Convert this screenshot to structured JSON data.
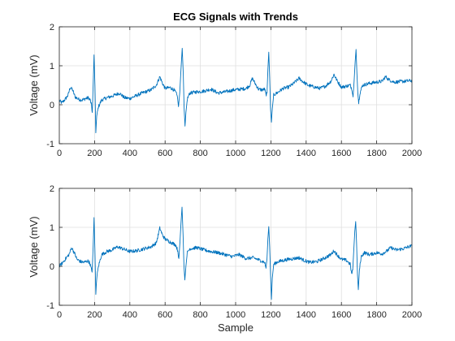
{
  "figure": {
    "title": "ECG Signals with Trends"
  },
  "colors": {
    "line": "#0072BD",
    "grid": "#DFDFDF",
    "axis": "#262626",
    "background": "#FFFFFF"
  },
  "chart_data": [
    {
      "type": "line",
      "title": "ECG Signals with Trends",
      "xlabel": "",
      "ylabel": "Voltage (mV)",
      "xlim": [
        0,
        2000
      ],
      "ylim": [
        -1,
        2
      ],
      "xticks": [
        0,
        200,
        400,
        600,
        800,
        1000,
        1200,
        1400,
        1600,
        1800,
        2000
      ],
      "yticks": [
        -1,
        0,
        1,
        2
      ],
      "grid": true,
      "series": [
        {
          "points": [
            [
              0,
              0.1
            ],
            [
              15,
              0.05
            ],
            [
              35,
              0.15
            ],
            [
              50,
              0.25
            ],
            [
              62,
              0.45
            ],
            [
              75,
              0.38
            ],
            [
              90,
              0.2
            ],
            [
              110,
              0.14
            ],
            [
              130,
              0.12
            ],
            [
              150,
              0.16
            ],
            [
              165,
              0.18
            ],
            [
              175,
              0.12
            ],
            [
              182,
              0.0
            ],
            [
              187,
              -0.2
            ],
            [
              192,
              0.5
            ],
            [
              197,
              1.28
            ],
            [
              202,
              0.5
            ],
            [
              207,
              -0.72
            ],
            [
              212,
              -0.3
            ],
            [
              222,
              -0.05
            ],
            [
              240,
              0.12
            ],
            [
              270,
              0.18
            ],
            [
              300,
              0.22
            ],
            [
              340,
              0.3
            ],
            [
              370,
              0.18
            ],
            [
              400,
              0.16
            ],
            [
              430,
              0.22
            ],
            [
              470,
              0.3
            ],
            [
              520,
              0.38
            ],
            [
              550,
              0.5
            ],
            [
              570,
              0.72
            ],
            [
              585,
              0.55
            ],
            [
              600,
              0.42
            ],
            [
              630,
              0.44
            ],
            [
              650,
              0.38
            ],
            [
              662,
              0.3
            ],
            [
              670,
              0.2
            ],
            [
              676,
              -0.05
            ],
            [
              683,
              0.3
            ],
            [
              690,
              0.9
            ],
            [
              697,
              1.45
            ],
            [
              703,
              0.8
            ],
            [
              708,
              -0.1
            ],
            [
              713,
              -0.55
            ],
            [
              718,
              -0.2
            ],
            [
              726,
              0.15
            ],
            [
              740,
              0.3
            ],
            [
              780,
              0.33
            ],
            [
              820,
              0.35
            ],
            [
              860,
              0.4
            ],
            [
              900,
              0.3
            ],
            [
              940,
              0.33
            ],
            [
              990,
              0.38
            ],
            [
              1030,
              0.4
            ],
            [
              1060,
              0.42
            ],
            [
              1080,
              0.5
            ],
            [
              1095,
              0.68
            ],
            [
              1110,
              0.55
            ],
            [
              1130,
              0.4
            ],
            [
              1150,
              0.38
            ],
            [
              1165,
              0.4
            ],
            [
              1172,
              0.25
            ],
            [
              1178,
              0.3
            ],
            [
              1183,
              0.9
            ],
            [
              1188,
              1.35
            ],
            [
              1193,
              0.7
            ],
            [
              1198,
              -0.1
            ],
            [
              1203,
              -0.45
            ],
            [
              1208,
              -0.1
            ],
            [
              1216,
              0.25
            ],
            [
              1240,
              0.32
            ],
            [
              1270,
              0.42
            ],
            [
              1300,
              0.45
            ],
            [
              1330,
              0.55
            ],
            [
              1360,
              0.68
            ],
            [
              1380,
              0.6
            ],
            [
              1410,
              0.5
            ],
            [
              1450,
              0.45
            ],
            [
              1480,
              0.42
            ],
            [
              1510,
              0.48
            ],
            [
              1540,
              0.6
            ],
            [
              1558,
              0.78
            ],
            [
              1575,
              0.62
            ],
            [
              1600,
              0.45
            ],
            [
              1630,
              0.48
            ],
            [
              1650,
              0.5
            ],
            [
              1660,
              0.4
            ],
            [
              1666,
              0.2
            ],
            [
              1672,
              0.6
            ],
            [
              1678,
              1.1
            ],
            [
              1683,
              1.42
            ],
            [
              1688,
              0.8
            ],
            [
              1693,
              0.3
            ],
            [
              1698,
              0.05
            ],
            [
              1705,
              0.3
            ],
            [
              1720,
              0.5
            ],
            [
              1760,
              0.55
            ],
            [
              1800,
              0.58
            ],
            [
              1830,
              0.6
            ],
            [
              1850,
              0.72
            ],
            [
              1870,
              0.64
            ],
            [
              1900,
              0.58
            ],
            [
              1950,
              0.6
            ],
            [
              2000,
              0.62
            ]
          ]
        }
      ]
    },
    {
      "type": "line",
      "title": "",
      "xlabel": "Sample",
      "ylabel": "Voltage (mV)",
      "xlim": [
        0,
        2000
      ],
      "ylim": [
        -1,
        2
      ],
      "xticks": [
        0,
        200,
        400,
        600,
        800,
        1000,
        1200,
        1400,
        1600,
        1800,
        2000
      ],
      "yticks": [
        -1,
        0,
        1,
        2
      ],
      "grid": true,
      "series": [
        {
          "points": [
            [
              0,
              0.0
            ],
            [
              20,
              0.1
            ],
            [
              40,
              0.22
            ],
            [
              55,
              0.3
            ],
            [
              70,
              0.48
            ],
            [
              85,
              0.35
            ],
            [
              100,
              0.18
            ],
            [
              120,
              0.12
            ],
            [
              140,
              0.1
            ],
            [
              160,
              0.14
            ],
            [
              172,
              0.1
            ],
            [
              180,
              -0.05
            ],
            [
              186,
              -0.15
            ],
            [
              192,
              0.5
            ],
            [
              197,
              1.25
            ],
            [
              202,
              0.4
            ],
            [
              207,
              -0.72
            ],
            [
              212,
              -0.3
            ],
            [
              222,
              0.0
            ],
            [
              240,
              0.3
            ],
            [
              270,
              0.38
            ],
            [
              300,
              0.42
            ],
            [
              330,
              0.5
            ],
            [
              360,
              0.45
            ],
            [
              400,
              0.38
            ],
            [
              440,
              0.4
            ],
            [
              480,
              0.45
            ],
            [
              520,
              0.5
            ],
            [
              550,
              0.6
            ],
            [
              570,
              0.98
            ],
            [
              585,
              0.8
            ],
            [
              600,
              0.7
            ],
            [
              630,
              0.62
            ],
            [
              660,
              0.55
            ],
            [
              672,
              0.4
            ],
            [
              678,
              0.2
            ],
            [
              684,
              0.6
            ],
            [
              690,
              1.1
            ],
            [
              696,
              1.52
            ],
            [
              702,
              0.8
            ],
            [
              707,
              0.0
            ],
            [
              712,
              -0.35
            ],
            [
              718,
              0.0
            ],
            [
              726,
              0.35
            ],
            [
              740,
              0.45
            ],
            [
              780,
              0.48
            ],
            [
              820,
              0.42
            ],
            [
              860,
              0.38
            ],
            [
              900,
              0.35
            ],
            [
              940,
              0.3
            ],
            [
              980,
              0.25
            ],
            [
              1020,
              0.3
            ],
            [
              1060,
              0.2
            ],
            [
              1100,
              0.22
            ],
            [
              1140,
              0.15
            ],
            [
              1165,
              0.1
            ],
            [
              1172,
              -0.05
            ],
            [
              1178,
              0.2
            ],
            [
              1183,
              0.7
            ],
            [
              1188,
              1.02
            ],
            [
              1193,
              0.5
            ],
            [
              1198,
              -0.2
            ],
            [
              1203,
              -0.85
            ],
            [
              1208,
              -0.3
            ],
            [
              1216,
              0.05
            ],
            [
              1240,
              0.12
            ],
            [
              1270,
              0.15
            ],
            [
              1300,
              0.18
            ],
            [
              1330,
              0.2
            ],
            [
              1360,
              0.22
            ],
            [
              1390,
              0.15
            ],
            [
              1420,
              0.1
            ],
            [
              1460,
              0.12
            ],
            [
              1500,
              0.2
            ],
            [
              1540,
              0.3
            ],
            [
              1558,
              0.4
            ],
            [
              1575,
              0.3
            ],
            [
              1600,
              0.18
            ],
            [
              1630,
              0.15
            ],
            [
              1650,
              0.05
            ],
            [
              1658,
              -0.2
            ],
            [
              1664,
              -0.1
            ],
            [
              1670,
              0.4
            ],
            [
              1676,
              0.9
            ],
            [
              1681,
              1.15
            ],
            [
              1686,
              0.6
            ],
            [
              1691,
              -0.2
            ],
            [
              1696,
              -0.6
            ],
            [
              1702,
              -0.1
            ],
            [
              1712,
              0.25
            ],
            [
              1730,
              0.35
            ],
            [
              1760,
              0.3
            ],
            [
              1800,
              0.35
            ],
            [
              1830,
              0.32
            ],
            [
              1860,
              0.4
            ],
            [
              1880,
              0.48
            ],
            [
              1910,
              0.42
            ],
            [
              1950,
              0.45
            ],
            [
              1980,
              0.5
            ],
            [
              2000,
              0.52
            ]
          ]
        }
      ]
    }
  ]
}
